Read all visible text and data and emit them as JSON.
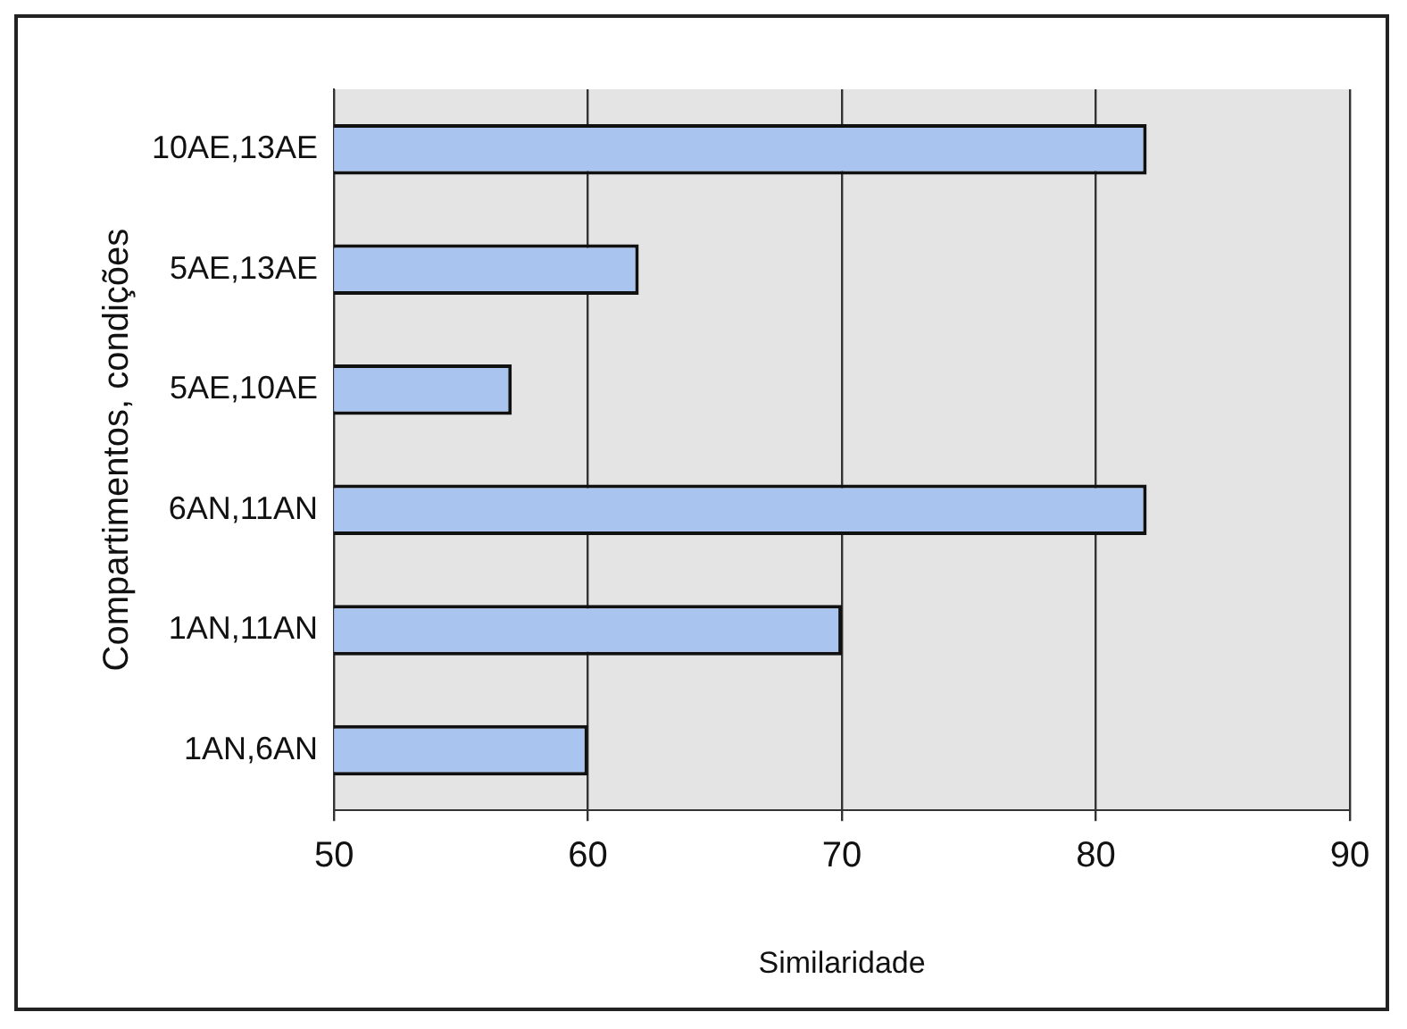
{
  "chart_data": {
    "type": "bar",
    "orientation": "horizontal",
    "xlabel": "Similaridade",
    "ylabel": "Compartimentos, condições",
    "categories": [
      "10AE,13AE",
      "5AE,13AE",
      "5AE,10AE",
      "6AN,11AN",
      "1AN,11AN",
      "1AN,6AN"
    ],
    "values": [
      82,
      62,
      57,
      82,
      70,
      60
    ],
    "color": "#aac4f0",
    "xlim": [
      50,
      90
    ],
    "xticks": [
      50,
      60,
      70,
      80,
      90
    ],
    "grid": "x"
  }
}
